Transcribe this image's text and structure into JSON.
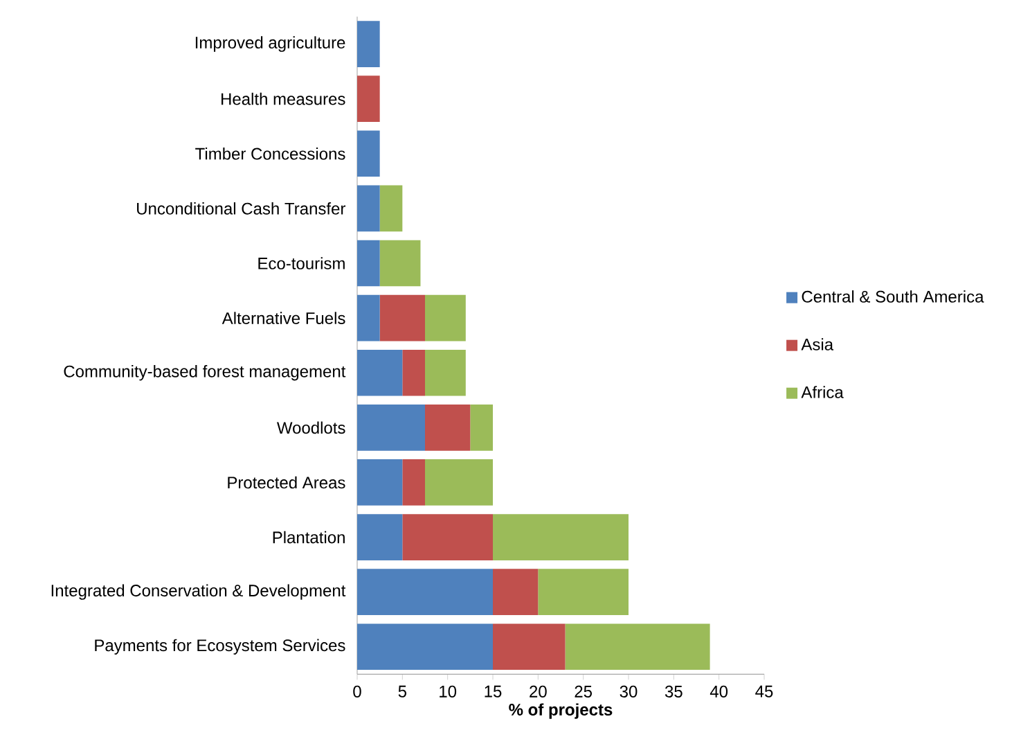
{
  "chart_data": {
    "type": "bar",
    "orientation": "horizontal",
    "stacked": true,
    "xlabel": "% of projects",
    "categories": [
      "Improved agriculture",
      "Health measures",
      "Timber Concessions",
      "Unconditional Cash Transfer",
      "Eco-tourism",
      "Alternative Fuels",
      "Community-based forest management",
      "Woodlots",
      "Protected Areas",
      "Plantation",
      "Integrated Conservation & Development",
      "Payments for Ecosystem Services"
    ],
    "series": [
      {
        "name": "Central & South America",
        "color": "#4f81bd",
        "values": [
          2.5,
          0,
          2.5,
          2.5,
          2.5,
          2.5,
          5,
          7.5,
          5,
          5,
          15,
          15
        ]
      },
      {
        "name": "Asia",
        "color": "#c0504d",
        "values": [
          0,
          2.5,
          0,
          0,
          0,
          5,
          2.5,
          5,
          2.5,
          10,
          5,
          8
        ]
      },
      {
        "name": "Africa",
        "color": "#9bbb59",
        "values": [
          0,
          0,
          0,
          2.5,
          4.5,
          4.5,
          4.5,
          2.5,
          7.5,
          15,
          10,
          16
        ]
      }
    ],
    "xlim": [
      0,
      45
    ],
    "xticks": [
      0,
      5,
      10,
      15,
      20,
      25,
      30,
      35,
      40,
      45
    ],
    "grid": false,
    "legend": "right"
  }
}
